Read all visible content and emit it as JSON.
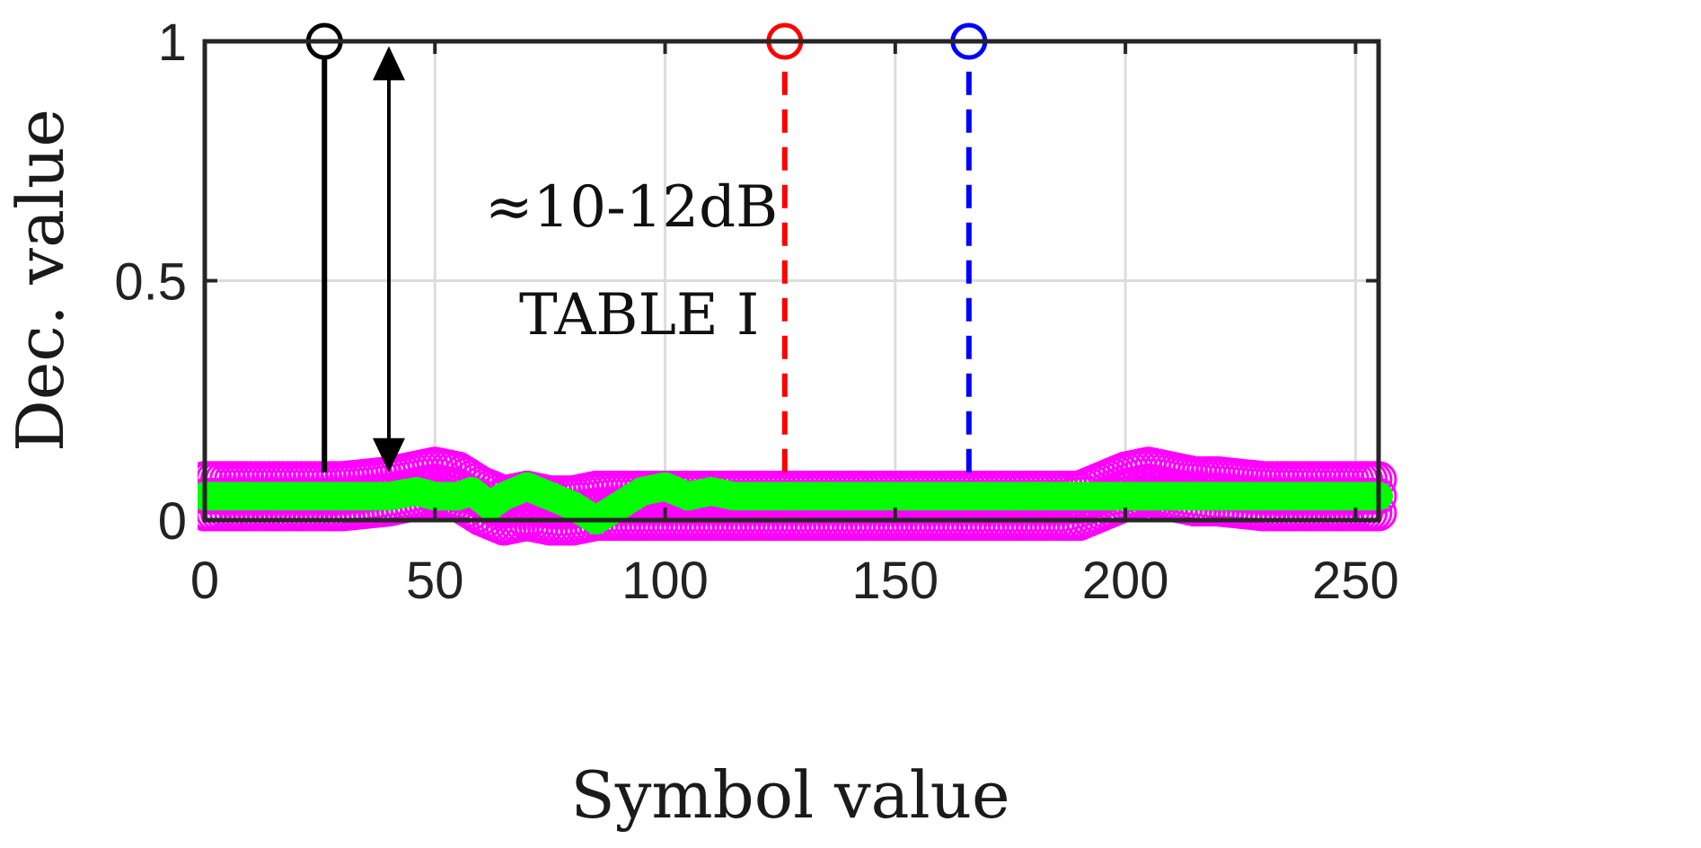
{
  "chart_data": {
    "type": "scatter",
    "title": "",
    "xlabel": "Symbol value",
    "ylabel": "Dec. value",
    "xlim": [
      0,
      255
    ],
    "ylim": [
      0,
      1
    ],
    "xticks": [
      0,
      50,
      100,
      150,
      200,
      250
    ],
    "yticks": [
      0,
      0.5,
      1
    ],
    "xtick_labels": [
      "0",
      "50",
      "100",
      "150",
      "200",
      "250"
    ],
    "ytick_labels": [
      "0",
      "0.5",
      "1"
    ],
    "grid": true,
    "box": true,
    "stems": [
      {
        "x": 26,
        "y": 1,
        "color": "#000000",
        "style": "solid"
      },
      {
        "x": 126,
        "y": 1,
        "color": "#ff0000",
        "style": "dashed"
      },
      {
        "x": 166,
        "y": 1,
        "color": "#0000ff",
        "style": "dashed"
      }
    ],
    "series": [
      {
        "color": "#ff00ff",
        "marker": "open-circle",
        "band": true,
        "x": [
          0,
          10,
          20,
          30,
          40,
          45,
          50,
          55,
          60,
          65,
          70,
          75,
          80,
          85,
          90,
          100,
          110,
          120,
          130,
          140,
          150,
          160,
          170,
          180,
          190,
          195,
          200,
          205,
          210,
          215,
          220,
          230,
          240,
          250,
          255
        ],
        "y": [
          0.05,
          0.05,
          0.05,
          0.05,
          0.06,
          0.07,
          0.08,
          0.07,
          0.04,
          0.02,
          0.03,
          0.02,
          0.02,
          0.03,
          0.03,
          0.03,
          0.03,
          0.03,
          0.03,
          0.03,
          0.03,
          0.03,
          0.03,
          0.03,
          0.03,
          0.05,
          0.07,
          0.08,
          0.07,
          0.06,
          0.06,
          0.05,
          0.05,
          0.05,
          0.05
        ]
      },
      {
        "color": "#00ff00",
        "marker": "filled-circle",
        "band": false,
        "x": [
          0,
          10,
          20,
          30,
          40,
          46,
          50,
          55,
          58,
          62,
          65,
          70,
          75,
          80,
          85,
          90,
          95,
          100,
          105,
          110,
          115,
          120,
          130,
          140,
          150,
          160,
          170,
          180,
          190,
          200,
          210,
          220,
          230,
          240,
          250,
          255
        ],
        "y": [
          0.05,
          0.05,
          0.05,
          0.05,
          0.05,
          0.06,
          0.05,
          0.05,
          0.06,
          0.03,
          0.05,
          0.07,
          0.05,
          0.03,
          0.0,
          0.03,
          0.06,
          0.07,
          0.05,
          0.06,
          0.05,
          0.05,
          0.05,
          0.05,
          0.05,
          0.05,
          0.05,
          0.05,
          0.05,
          0.05,
          0.05,
          0.05,
          0.05,
          0.05,
          0.05,
          0.05
        ]
      }
    ],
    "annotations": [
      {
        "text": "≈10-12dB",
        "arrow": {
          "x": 40,
          "y_from": 0.1,
          "y_to": 0.99
        }
      },
      {
        "text": "TABLE I"
      }
    ]
  }
}
